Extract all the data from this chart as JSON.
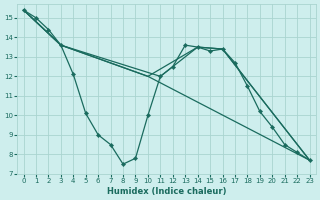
{
  "xlabel": "Humidex (Indice chaleur)",
  "bg_color": "#ceeeed",
  "grid_color": "#aad4d0",
  "line_color": "#1a6b5e",
  "xlim": [
    -0.5,
    23.5
  ],
  "ylim": [
    7,
    15.7
  ],
  "yticks": [
    7,
    8,
    9,
    10,
    11,
    12,
    13,
    14,
    15
  ],
  "xticks": [
    0,
    1,
    2,
    3,
    4,
    5,
    6,
    7,
    8,
    9,
    10,
    11,
    12,
    13,
    14,
    15,
    16,
    17,
    18,
    19,
    20,
    21,
    22,
    23
  ],
  "lines": [
    {
      "x": [
        0,
        1,
        2,
        3,
        4,
        5,
        6,
        7,
        8,
        9,
        10,
        11,
        12,
        13,
        14,
        15,
        16,
        17,
        18,
        19,
        20,
        21,
        22,
        23
      ],
      "y": [
        15.4,
        15.0,
        14.4,
        13.6,
        12.1,
        10.1,
        9.0,
        8.5,
        7.5,
        7.8,
        10.0,
        12.0,
        12.5,
        13.6,
        13.5,
        13.3,
        13.4,
        12.7,
        11.5,
        10.2,
        9.4,
        8.5,
        8.1,
        7.7
      ],
      "marker": true
    },
    {
      "x": [
        0,
        3,
        10,
        23
      ],
      "y": [
        15.4,
        13.6,
        12.0,
        7.7
      ],
      "marker": false
    },
    {
      "x": [
        0,
        3,
        11,
        14,
        16,
        23
      ],
      "y": [
        15.4,
        13.6,
        12.0,
        13.5,
        13.4,
        7.7
      ],
      "marker": false
    },
    {
      "x": [
        0,
        3,
        10,
        14,
        16,
        23
      ],
      "y": [
        15.4,
        13.6,
        12.0,
        13.5,
        13.4,
        7.7
      ],
      "marker": false
    }
  ]
}
